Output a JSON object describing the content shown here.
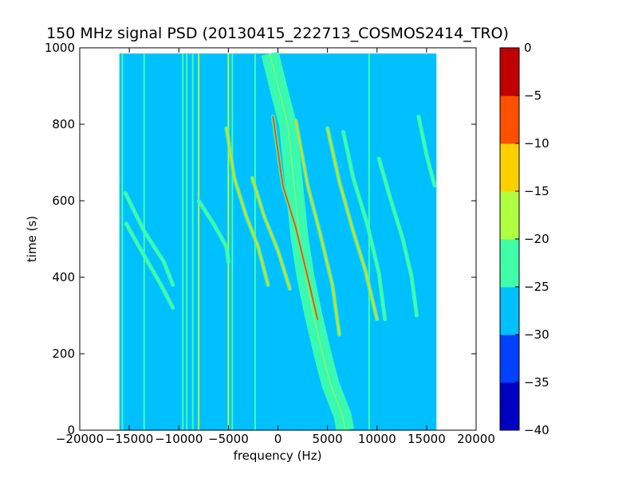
{
  "chart_data": {
    "type": "heatmap",
    "title": "150 MHz signal PSD (20130415_222713_COSMOS2414_TRO)",
    "xlabel": "frequency (Hz)",
    "ylabel": "time (s)",
    "xlim": [
      -20000,
      20000
    ],
    "ylim": [
      0,
      1000
    ],
    "x_ticks": [
      -20000,
      -15000,
      -10000,
      -5000,
      0,
      5000,
      10000,
      15000,
      20000
    ],
    "x_tick_labels": [
      "−20000",
      "−15000",
      "−10000",
      "−5000",
      "0",
      "5000",
      "10000",
      "15000",
      "20000"
    ],
    "y_ticks": [
      0,
      200,
      400,
      600,
      800,
      1000
    ],
    "y_tick_labels": [
      "0",
      "200",
      "400",
      "600",
      "800",
      "1000"
    ],
    "data_extent": {
      "x": [
        -16000,
        16000
      ],
      "y": [
        0,
        985
      ]
    },
    "background_level": -27.5,
    "colorbar": {
      "levels": [
        -40,
        -35,
        -30,
        -25,
        -20,
        -15,
        -10,
        -5,
        0
      ],
      "tick_labels": [
        "−40",
        "−35",
        "−30",
        "−25",
        "−20",
        "−15",
        "−10",
        "−5",
        "0"
      ],
      "colors": [
        "#0000c0",
        "#0040ff",
        "#00c0ff",
        "#40ffa8",
        "#b0ff40",
        "#ffd000",
        "#ff5000",
        "#c00000"
      ]
    },
    "vertical_lines": [
      {
        "f": -15700,
        "level": -22
      },
      {
        "f": -13500,
        "level": -22
      },
      {
        "f": -9600,
        "level": -22
      },
      {
        "f": -9200,
        "level": -22
      },
      {
        "f": -8600,
        "level": -22
      },
      {
        "f": -8000,
        "level": -17
      },
      {
        "f": -5000,
        "level": -17
      },
      {
        "f": -4600,
        "level": -22
      },
      {
        "f": -2300,
        "level": -22
      },
      {
        "f": 9200,
        "level": -22
      }
    ],
    "drifting_signals": [
      {
        "points": [
          [
            -15400,
            620
          ],
          [
            -13500,
            520
          ],
          [
            -11500,
            440
          ],
          [
            -10600,
            380
          ]
        ],
        "level": -22
      },
      {
        "points": [
          [
            -15300,
            540
          ],
          [
            -13800,
            470
          ],
          [
            -11800,
            380
          ],
          [
            -10600,
            320
          ]
        ],
        "level": -22
      },
      {
        "points": [
          [
            -8000,
            600
          ],
          [
            -6500,
            540
          ],
          [
            -5200,
            480
          ],
          [
            -5000,
            440
          ]
        ],
        "level": -22
      },
      {
        "points": [
          [
            -5200,
            790
          ],
          [
            -4400,
            660
          ],
          [
            -3200,
            560
          ],
          [
            -2000,
            480
          ],
          [
            -1000,
            380
          ]
        ],
        "level": -15
      },
      {
        "points": [
          [
            -2600,
            660
          ],
          [
            -1400,
            560
          ],
          [
            0,
            470
          ],
          [
            1200,
            370
          ]
        ],
        "level": -15
      },
      {
        "points": [
          [
            -500,
            820
          ],
          [
            500,
            640
          ],
          [
            1800,
            530
          ],
          [
            3000,
            400
          ],
          [
            4000,
            290
          ]
        ],
        "level": -10
      },
      {
        "points": [
          [
            1800,
            810
          ],
          [
            3000,
            640
          ],
          [
            4200,
            520
          ],
          [
            5500,
            380
          ],
          [
            6200,
            250
          ]
        ],
        "level": -15
      },
      {
        "points": [
          [
            5000,
            790
          ],
          [
            6200,
            650
          ],
          [
            7600,
            520
          ],
          [
            8800,
            420
          ],
          [
            10000,
            290
          ]
        ],
        "level": -15
      },
      {
        "points": [
          [
            6600,
            780
          ],
          [
            7600,
            660
          ],
          [
            9000,
            540
          ],
          [
            10200,
            410
          ],
          [
            10800,
            290
          ]
        ],
        "level": -22
      },
      {
        "points": [
          [
            10200,
            710
          ],
          [
            11300,
            610
          ],
          [
            12600,
            500
          ],
          [
            13500,
            400
          ],
          [
            14000,
            300
          ]
        ],
        "level": -22
      },
      {
        "points": [
          [
            14200,
            820
          ],
          [
            15000,
            720
          ],
          [
            15800,
            640
          ]
        ],
        "level": -22
      }
    ],
    "wandering_band": {
      "points": [
        [
          -800,
          985
        ],
        [
          0,
          900
        ],
        [
          1000,
          800
        ],
        [
          1400,
          700
        ],
        [
          1800,
          600
        ],
        [
          2200,
          500
        ],
        [
          2800,
          400
        ],
        [
          3600,
          300
        ],
        [
          4500,
          200
        ],
        [
          5300,
          120
        ],
        [
          6500,
          40
        ],
        [
          6800,
          0
        ]
      ],
      "width_hz": 1800,
      "level": -22
    }
  }
}
